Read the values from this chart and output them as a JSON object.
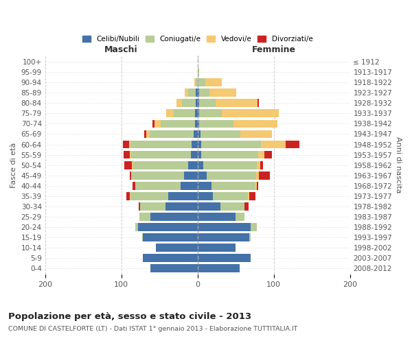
{
  "age_groups": [
    "0-4",
    "5-9",
    "10-14",
    "15-19",
    "20-24",
    "25-29",
    "30-34",
    "35-39",
    "40-44",
    "45-49",
    "50-54",
    "55-59",
    "60-64",
    "65-69",
    "70-74",
    "75-79",
    "80-84",
    "85-89",
    "90-94",
    "95-99",
    "100+"
  ],
  "birth_years": [
    "2008-2012",
    "2003-2007",
    "1998-2002",
    "1993-1997",
    "1988-1992",
    "1983-1987",
    "1978-1982",
    "1973-1977",
    "1968-1972",
    "1963-1967",
    "1958-1962",
    "1953-1957",
    "1948-1952",
    "1943-1947",
    "1938-1942",
    "1933-1937",
    "1928-1932",
    "1923-1927",
    "1918-1922",
    "1913-1917",
    "≤ 1912"
  ],
  "male_celibi": [
    62,
    72,
    55,
    72,
    78,
    62,
    42,
    38,
    22,
    18,
    12,
    9,
    8,
    5,
    3,
    3,
    2,
    2,
    0,
    0,
    0
  ],
  "male_coniugati": [
    0,
    0,
    0,
    1,
    4,
    14,
    33,
    50,
    60,
    68,
    72,
    78,
    80,
    58,
    45,
    28,
    18,
    10,
    2,
    0,
    0
  ],
  "male_vedovi": [
    0,
    0,
    0,
    0,
    0,
    0,
    0,
    1,
    0,
    1,
    2,
    2,
    2,
    4,
    8,
    10,
    8,
    5,
    2,
    0,
    0
  ],
  "male_divorziati": [
    0,
    0,
    0,
    0,
    0,
    0,
    2,
    4,
    3,
    2,
    10,
    8,
    8,
    3,
    3,
    0,
    0,
    0,
    0,
    0,
    0
  ],
  "female_nubili": [
    55,
    70,
    50,
    68,
    70,
    50,
    30,
    20,
    18,
    12,
    8,
    5,
    5,
    4,
    2,
    2,
    2,
    2,
    0,
    0,
    0
  ],
  "female_coniugate": [
    0,
    0,
    0,
    2,
    8,
    12,
    32,
    46,
    58,
    65,
    70,
    75,
    78,
    52,
    45,
    30,
    22,
    14,
    10,
    2,
    0
  ],
  "female_vedove": [
    0,
    0,
    0,
    0,
    0,
    0,
    0,
    2,
    2,
    4,
    4,
    8,
    33,
    42,
    58,
    75,
    55,
    35,
    22,
    0,
    0
  ],
  "female_divorziate": [
    0,
    0,
    0,
    0,
    0,
    0,
    5,
    8,
    2,
    14,
    4,
    10,
    18,
    0,
    0,
    0,
    2,
    0,
    0,
    0,
    0
  ],
  "colors": {
    "celibi": "#4472a8",
    "coniugati": "#b8cc96",
    "vedovi": "#f5c872",
    "divorziati": "#cc2222"
  },
  "title": "Popolazione per età, sesso e stato civile - 2013",
  "subtitle": "COMUNE DI CASTELFORTE (LT) - Dati ISTAT 1° gennaio 2013 - Elaborazione TUTTITALIA.IT",
  "xlabel_left": "Maschi",
  "xlabel_right": "Femmine",
  "ylabel_left": "Fasce di età",
  "ylabel_right": "Anni di nascita",
  "xlim": 200,
  "legend_labels": [
    "Celibi/Nubili",
    "Coniugati/e",
    "Vedovi/e",
    "Divorziati/e"
  ],
  "background_color": "#ffffff"
}
